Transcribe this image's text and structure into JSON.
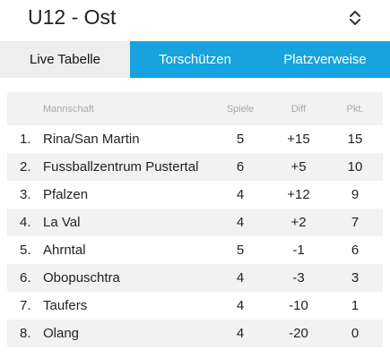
{
  "header": {
    "title": "U12 - Ost",
    "selector_icon": "up-down-chevron-icon"
  },
  "tabs": [
    {
      "label": "Live Tabelle",
      "active": true
    },
    {
      "label": "Torschützen",
      "active": false
    },
    {
      "label": "Platzverweise",
      "active": false
    }
  ],
  "colors": {
    "accent": "#17a3dd",
    "active_tab_bg": "#eeeeee",
    "row_stripe": "#f2f2f2"
  },
  "table": {
    "columns": {
      "team": "Mannschaft",
      "games": "Spiele",
      "diff": "Diff",
      "points": "Pkt."
    },
    "rows": [
      {
        "rank": "1.",
        "team": "Rina/San Martin",
        "games": "5",
        "diff": "+15",
        "points": "15"
      },
      {
        "rank": "2.",
        "team": "Fussballzentrum Pustertal",
        "games": "6",
        "diff": "+5",
        "points": "10"
      },
      {
        "rank": "3.",
        "team": "Pfalzen",
        "games": "4",
        "diff": "+12",
        "points": "9"
      },
      {
        "rank": "4.",
        "team": "La Val",
        "games": "4",
        "diff": "+2",
        "points": "7"
      },
      {
        "rank": "5.",
        "team": "Ahrntal",
        "games": "5",
        "diff": "-1",
        "points": "6"
      },
      {
        "rank": "6.",
        "team": "Obopuschtra",
        "games": "4",
        "diff": "-3",
        "points": "3"
      },
      {
        "rank": "7.",
        "team": "Taufers",
        "games": "4",
        "diff": "-10",
        "points": "1"
      },
      {
        "rank": "8.",
        "team": "Olang",
        "games": "4",
        "diff": "-20",
        "points": "0"
      }
    ]
  }
}
